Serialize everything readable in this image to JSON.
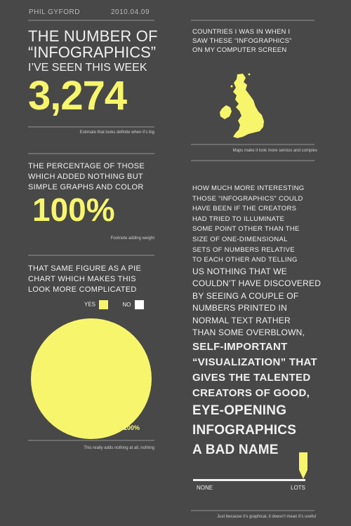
{
  "header": {
    "author": "PHIL GYFORD",
    "date": "2010.04.09"
  },
  "col_left": {
    "section1": {
      "lines": [
        "THE NUMBER OF",
        "“INFOGRAPHICS”",
        "I’VE SEEN THIS WEEK"
      ],
      "big_number": "3,274",
      "note": "Estimate that looks definite when it’s big"
    },
    "section2": {
      "lines": [
        "THE PERCENTAGE OF THOSE",
        "WHICH ADDED NOTHING BUT",
        "SIMPLE GRAPHS AND COLOR"
      ],
      "big_number": "100%",
      "note": "Footnote adding weight"
    },
    "section3": {
      "lines": [
        "THAT SAME FIGURE AS A PIE",
        "CHART WHICH MAKES THIS",
        "LOOK MORE COMPLICATED"
      ],
      "legend_yes": "YES",
      "legend_no": "NO",
      "pie_label": "100%",
      "note": "This really adds nothing at all, nothing"
    }
  },
  "col_right": {
    "section1": {
      "lines": [
        "COUNTRIES I WAS IN WHEN I",
        "SAW THESE “INFOGRAPHICS”",
        "ON MY COMPUTER SCREEN"
      ],
      "note": "Maps make it look more serious and complex"
    },
    "section2": {
      "lines_small": [
        "HOW MUCH MORE INTERESTING",
        "THOSE “INFOGRAPHICS” COULD",
        "HAVE BEEN IF THE CREATORS",
        "HAD TRIED TO ILLUMINATE",
        "SOME POINT OTHER THAN THE",
        "SIZE OF ONE-DIMENSIONAL",
        "SETS OF NUMBERS RELATIVE",
        "TO EACH OTHER AND TELLING"
      ],
      "lines_medium": [
        "US NOTHING THAT WE",
        "COULDN’T HAVE DISCOVERED",
        "BY SEEING A COUPLE OF",
        "NUMBERS PRINTED IN",
        "NORMAL TEXT RATHER",
        "THAN SOME OVERBLOWN,"
      ],
      "lines_large": [
        "SELF-IMPORTANT",
        "“VISUALIZATION” THAT",
        "GIVES THE TALENTED",
        "CREATORS OF GOOD,"
      ],
      "lines_xlarge": [
        "EYE-OPENING",
        "INFOGRAPHICS",
        "A BAD NAME"
      ]
    },
    "scale": {
      "left_label": "NONE",
      "right_label": "LOTS",
      "value_fraction": 1.0,
      "note": "Just because it’s graphical, it doesn’t mean it’s useful"
    }
  },
  "colors": {
    "background": "#484848",
    "accent": "#f7f56c",
    "text": "#f0f0f0",
    "rule": "#6e6e6e"
  },
  "chart_data": {
    "type": "pie",
    "categories": [
      "YES",
      "NO"
    ],
    "values": [
      100,
      0
    ],
    "colors": [
      "#f7f56c",
      "#ffffff"
    ],
    "legend": "top-right"
  }
}
